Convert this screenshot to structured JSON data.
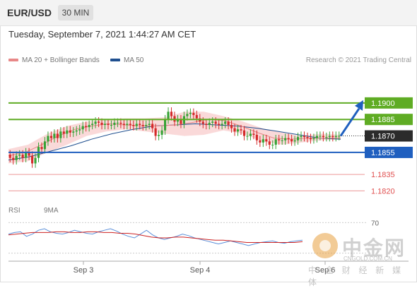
{
  "header": {
    "symbol": "EUR/USD",
    "timeframe": "30 MIN",
    "datetime": "Tuesday, September 7, 2021 1:44:27 AM CET"
  },
  "legend": {
    "ma20_label": "MA 20 + Bollinger Bands",
    "ma50_label": "MA 50",
    "copyright": "Research © 2021 Trading Central"
  },
  "rsi_legend": {
    "rsi_label": "RSI",
    "ma9_label": "9MA"
  },
  "watermark": {
    "cn": "中金网",
    "sub": "CNGOLD.COM.CN",
    "bottom": "中 金 财 经 新 媒 体"
  },
  "colors": {
    "resistance": "#5fac24",
    "support": "#1f5fbf",
    "weak_support": "#e05050",
    "current": "#2b2b2b",
    "ma20": "#e88888",
    "ma50": "#1f4f8f",
    "bollinger": "#f9d0d0",
    "candle_up": "#36a336",
    "candle_down": "#d42a2a",
    "arrow": "#1f5fbf",
    "rsi": "#5b8fd9",
    "ma9": "#cc2222"
  },
  "chart_data": [
    {
      "type": "line",
      "title": "EUR/USD 30 MIN",
      "x_ticks": [
        "Sep 3",
        "Sep 4",
        "Sep 6"
      ],
      "ylim": [
        1.181,
        1.1932
      ],
      "grid": false,
      "legend_position": "top-left",
      "levels": [
        {
          "name": "resistance-2",
          "value": 1.19,
          "label": "1.1900",
          "kind": "resistance"
        },
        {
          "name": "resistance-1",
          "value": 1.1885,
          "label": "1.1885",
          "kind": "resistance"
        },
        {
          "name": "current",
          "value": 1.187,
          "label": "1.1870",
          "kind": "current"
        },
        {
          "name": "support-1",
          "value": 1.1855,
          "label": "1.1855",
          "kind": "support"
        },
        {
          "name": "support-2",
          "value": 1.1835,
          "label": "1.1835",
          "kind": "weak"
        },
        {
          "name": "support-3",
          "value": 1.182,
          "label": "1.1820",
          "kind": "weak"
        }
      ],
      "arrow": {
        "from": 1.187,
        "to": 1.19,
        "direction": "up"
      },
      "series": [
        {
          "name": "Price",
          "values": [
            1.185,
            1.1848,
            1.1852,
            1.1853,
            1.185,
            1.1855,
            1.1852,
            1.1845,
            1.185,
            1.186,
            1.1858,
            1.1865,
            1.187,
            1.1868,
            1.1872,
            1.1868,
            1.1874,
            1.1872,
            1.1875,
            1.1873,
            1.1874,
            1.1875,
            1.1876,
            1.1879,
            1.1878,
            1.188,
            1.1881,
            1.1883,
            1.1882,
            1.188,
            1.1881,
            1.188,
            1.188,
            1.1882,
            1.1882,
            1.1881,
            1.188,
            1.1881,
            1.188,
            1.1879,
            1.1881,
            1.188,
            1.1879,
            1.188,
            1.1881,
            1.1877,
            1.187,
            1.1871,
            1.1875,
            1.1885,
            1.1892,
            1.1888,
            1.1883,
            1.1885,
            1.1881,
            1.1888,
            1.189,
            1.1891,
            1.1889,
            1.1886,
            1.1883,
            1.1881,
            1.188,
            1.1882,
            1.1883,
            1.1881,
            1.188,
            1.1881,
            1.1883,
            1.188,
            1.1877,
            1.1874,
            1.1876,
            1.1875,
            1.187,
            1.187,
            1.1872,
            1.1871,
            1.1866,
            1.1864,
            1.1867,
            1.1865,
            1.1862,
            1.1862,
            1.1867,
            1.1866,
            1.1866,
            1.1868,
            1.1867,
            1.1865,
            1.1866,
            1.1869,
            1.187,
            1.1869,
            1.1868,
            1.1867,
            1.1868,
            1.187,
            1.187,
            1.1869,
            1.1869,
            1.187,
            1.1869,
            1.187,
            1.187
          ]
        },
        {
          "name": "MA 20",
          "values": [
            1.1852,
            1.1855,
            1.1862,
            1.187,
            1.1876,
            1.1879,
            1.1881,
            1.188,
            1.1879,
            1.1879,
            1.188,
            1.1882,
            1.1885,
            1.1884,
            1.1879,
            1.1873,
            1.1868,
            1.1867,
            1.1868,
            1.1868,
            1.1868
          ]
        },
        {
          "name": "MA 50",
          "values": [
            1.1848,
            1.1851,
            1.1856,
            1.1861,
            1.1867,
            1.1872,
            1.1876,
            1.1879,
            1.188,
            1.1881,
            1.188,
            1.1879,
            1.1877,
            1.1874,
            1.1871,
            1.1868,
            1.1867
          ]
        },
        {
          "name": "Bollinger Upper",
          "values": [
            1.1858,
            1.1862,
            1.1872,
            1.1879,
            1.1883,
            1.1885,
            1.1886,
            1.1886,
            1.1887,
            1.1892,
            1.1892,
            1.1888,
            1.1883,
            1.1877,
            1.1873,
            1.187,
            1.1872,
            1.1871
          ]
        },
        {
          "name": "Bollinger Lower",
          "values": [
            1.1845,
            1.1847,
            1.1855,
            1.1862,
            1.187,
            1.1874,
            1.1876,
            1.1874,
            1.1872,
            1.187,
            1.1871,
            1.1875,
            1.1872,
            1.1865,
            1.1862,
            1.1864,
            1.1866,
            1.1867
          ]
        }
      ]
    },
    {
      "type": "line",
      "title": "RSI",
      "ylim": [
        25,
        75
      ],
      "y_ticks": [
        "70"
      ],
      "series": [
        {
          "name": "RSI",
          "values": [
            55,
            57,
            58,
            52,
            55,
            60,
            62,
            58,
            56,
            55,
            57,
            60,
            58,
            56,
            55,
            58,
            60,
            62,
            59,
            55,
            52,
            50,
            55,
            60,
            54,
            50,
            48,
            50,
            52,
            55,
            53,
            50,
            48,
            46,
            44,
            42,
            44,
            46,
            44,
            42,
            40,
            42,
            44,
            45,
            46,
            44,
            43,
            45,
            46,
            47
          ]
        },
        {
          "name": "9MA",
          "values": [
            54,
            55,
            56,
            57,
            57,
            57,
            58,
            58,
            57,
            57,
            58,
            58,
            57,
            57,
            56,
            56,
            55,
            53,
            51,
            50,
            50,
            51,
            51,
            50,
            49,
            48,
            47,
            47,
            46,
            45,
            44,
            44,
            44,
            44,
            44,
            44,
            44,
            45
          ]
        }
      ]
    }
  ]
}
